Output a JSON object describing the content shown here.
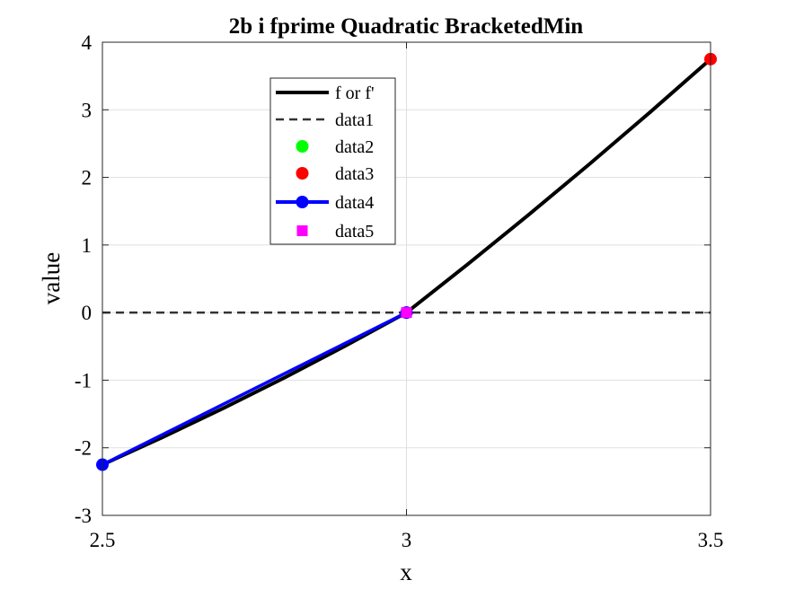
{
  "chart_data": {
    "type": "line",
    "title": "2b i fprime Quadratic BracketedMin",
    "xlabel": "x",
    "ylabel": "value",
    "xlim": [
      2.5,
      3.5
    ],
    "ylim": [
      -3,
      4
    ],
    "xticks": [
      2.5,
      3,
      3.5
    ],
    "xtick_labels": [
      "2.5",
      "3",
      "3.5"
    ],
    "yticks": [
      -3,
      -2,
      -1,
      0,
      1,
      2,
      3,
      4
    ],
    "ytick_labels": [
      "-3",
      "-2",
      "-1",
      "0",
      "1",
      "2",
      "3",
      "4"
    ],
    "grid": true,
    "legend_placement": "upper-left inside",
    "series": [
      {
        "name": "f or f'",
        "style": "solid",
        "color": "#000000",
        "x": [
          2.5,
          2.6,
          2.7,
          2.8,
          2.9,
          3.0,
          3.1,
          3.2,
          3.3,
          3.4,
          3.5
        ],
        "y": [
          -2.25,
          -1.84,
          -1.41,
          -0.96,
          -0.49,
          0.0,
          0.71,
          1.44,
          2.19,
          2.96,
          3.75
        ]
      },
      {
        "name": "data1",
        "style": "dashed",
        "color": "#333333",
        "x": [
          2.5,
          3.5
        ],
        "y": [
          0,
          0
        ]
      },
      {
        "name": "data2",
        "style": "marker",
        "marker": "circle",
        "color": "#00ff00",
        "x": [],
        "y": []
      },
      {
        "name": "data3",
        "style": "marker",
        "marker": "circle",
        "color": "#ff0000",
        "x": [
          3.5
        ],
        "y": [
          3.75
        ]
      },
      {
        "name": "data4",
        "style": "solid-marker",
        "marker": "circle",
        "color": "#0000ff",
        "x": [
          2.5,
          3.0
        ],
        "y": [
          -2.25,
          0.0
        ]
      },
      {
        "name": "data5",
        "style": "marker",
        "marker": "square",
        "color": "#ff00ff",
        "x": [
          3.0
        ],
        "y": [
          0.0
        ]
      }
    ]
  }
}
